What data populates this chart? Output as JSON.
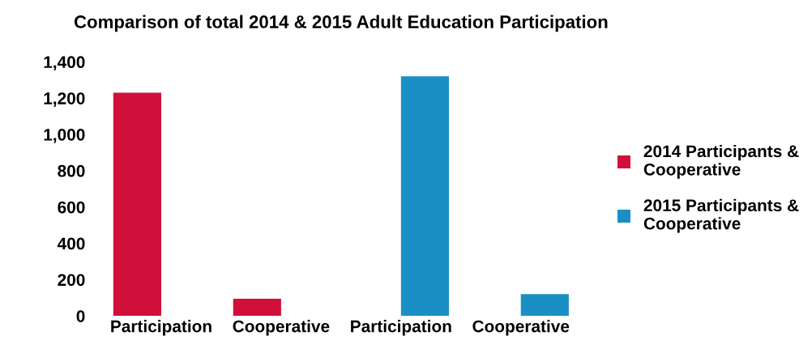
{
  "chart_data": {
    "type": "bar",
    "title": "Comparison of total 2014 & 2015 Adult Education Participation",
    "categories": [
      "Participation",
      "Cooperative",
      "Participation",
      "Cooperative"
    ],
    "series": [
      {
        "name": "2014 Participants & Cooperative",
        "color": "#d0103a",
        "values": [
          1230,
          95,
          null,
          null
        ]
      },
      {
        "name": "2015 Participants & Cooperative",
        "color": "#1a8fc4",
        "values": [
          null,
          null,
          1320,
          120
        ]
      }
    ],
    "ylim": [
      0,
      1400
    ],
    "yticks": [
      {
        "value": 0,
        "label": "0"
      },
      {
        "value": 200,
        "label": "200"
      },
      {
        "value": 400,
        "label": "400"
      },
      {
        "value": 600,
        "label": "600"
      },
      {
        "value": 800,
        "label": "800"
      },
      {
        "value": 1000,
        "label": "1,000"
      },
      {
        "value": 1200,
        "label": "1,200"
      },
      {
        "value": 1400,
        "label": "1,400"
      }
    ],
    "grid": false,
    "legend": "right"
  }
}
